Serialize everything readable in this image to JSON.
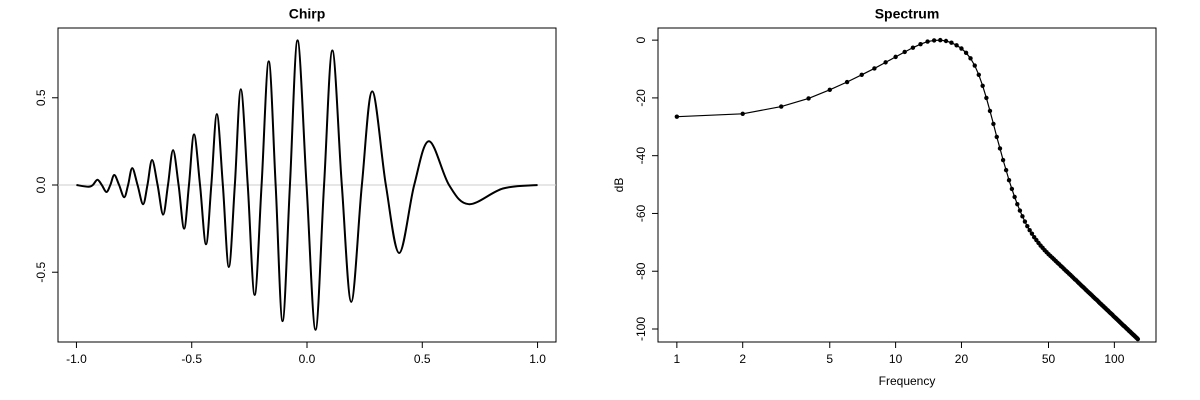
{
  "chart_data": [
    {
      "type": "line",
      "title": "Chirp",
      "color": "#000000",
      "smooth": true,
      "hline": 0,
      "hline_color": "#cccccc",
      "x": [
        -1.0,
        -0.948,
        -0.929,
        -0.909,
        -0.89,
        -0.87,
        -0.853,
        -0.836,
        -0.815,
        -0.793,
        -0.776,
        -0.758,
        -0.735,
        -0.711,
        -0.692,
        -0.672,
        -0.648,
        -0.624,
        -0.603,
        -0.581,
        -0.557,
        -0.533,
        -0.512,
        -0.49,
        -0.464,
        -0.438,
        -0.415,
        -0.391,
        -0.365,
        -0.339,
        -0.313,
        -0.287,
        -0.257,
        -0.227,
        -0.197,
        -0.166,
        -0.136,
        -0.106,
        -0.074,
        -0.041,
        -0.002,
        0.037,
        0.074,
        0.11,
        0.151,
        0.192,
        0.238,
        0.283,
        0.342,
        0.4,
        0.465,
        0.529,
        0.616,
        0.702,
        0.85,
        1.0
      ],
      "values": [
        0,
        -0.01,
        0,
        0.03,
        0,
        -0.04,
        0,
        0.057,
        0,
        -0.07,
        0,
        0.097,
        0,
        -0.11,
        0,
        0.143,
        0,
        -0.17,
        0,
        0.2,
        0,
        -0.25,
        0,
        0.29,
        0,
        -0.34,
        0,
        0.406,
        0,
        -0.47,
        0,
        0.549,
        0,
        -0.63,
        0,
        0.709,
        0,
        -0.78,
        0,
        0.829,
        0,
        -0.83,
        0,
        0.771,
        0,
        -0.67,
        0,
        0.537,
        0,
        -0.39,
        0,
        0.251,
        0,
        -0.11,
        -0.02,
        0
      ],
      "xlim": [
        -1.08,
        1.08
      ],
      "xticks": [
        {
          "value": -1,
          "label": "-1.0"
        },
        -0.5,
        {
          "value": 0,
          "label": "0.0"
        },
        0.5,
        {
          "value": 1,
          "label": "1.0"
        }
      ],
      "ylim": [
        -0.9,
        0.9
      ],
      "yticks": [
        -0.5,
        {
          "value": 0,
          "label": "0.0"
        },
        0.5
      ]
    },
    {
      "type": "line",
      "title": "Spectrum",
      "xlabel": "Frequency",
      "ylabel": "dB",
      "color": "#000000",
      "points": true,
      "xlog": true,
      "x": [
        1,
        2,
        3,
        4,
        5,
        6,
        7,
        8,
        9,
        10,
        11,
        12,
        13,
        14,
        15,
        16,
        17,
        18,
        19,
        20,
        21,
        22,
        23,
        24,
        25,
        26,
        27,
        28,
        29,
        30,
        31,
        32,
        33,
        34,
        35,
        36,
        37,
        38,
        39,
        40,
        41,
        42,
        43,
        44,
        45,
        46,
        47,
        48,
        49,
        50,
        51,
        52,
        53,
        54,
        55,
        56,
        57,
        58,
        59,
        60,
        61,
        62,
        63,
        64,
        65,
        66,
        67,
        68,
        69,
        70,
        71,
        72,
        73,
        74,
        75,
        76,
        77,
        78,
        79,
        80,
        81,
        82,
        83,
        84,
        85,
        86,
        87,
        88,
        89,
        90,
        91,
        92,
        93,
        94,
        95,
        96,
        97,
        98,
        99,
        100,
        101,
        102,
        103,
        104,
        105,
        106,
        107,
        108,
        109,
        110,
        111,
        112,
        113,
        114,
        115,
        116,
        117,
        118,
        119,
        120,
        121,
        122,
        123,
        124,
        125,
        126,
        127,
        128
      ],
      "values": [
        -26.5,
        -25.5,
        -23,
        -20.2,
        -17.2,
        -14.5,
        -12,
        -9.8,
        -7.7,
        -5.8,
        -4.1,
        -2.6,
        -1.4,
        -0.5,
        -0.1,
        0,
        -0.3,
        -0.9,
        -1.8,
        -2.9,
        -4.4,
        -6.3,
        -8.8,
        -12,
        -15.8,
        -20,
        -24.5,
        -29,
        -33.5,
        -37.5,
        -41.5,
        -45,
        -48.5,
        -51.5,
        -54.3,
        -56.8,
        -59,
        -61,
        -62.8,
        -64.4,
        -65.8,
        -67,
        -68.2,
        -69.2,
        -70.2,
        -71.1,
        -71.9,
        -72.7,
        -73.4,
        -74.1,
        -74.7,
        -75.3,
        -75.9,
        -76.5,
        -77.1,
        -77.6,
        -78.2,
        -78.7,
        -79.3,
        -79.8,
        -80.3,
        -80.8,
        -81.3,
        -81.8,
        -82.3,
        -82.8,
        -83.2,
        -83.7,
        -84.2,
        -84.6,
        -85.1,
        -85.5,
        -85.9,
        -86.4,
        -86.8,
        -87.2,
        -87.6,
        -88.0,
        -88.4,
        -88.8,
        -89.2,
        -89.6,
        -89.9,
        -90.3,
        -90.7,
        -91.1,
        -91.4,
        -91.8,
        -92.1,
        -92.5,
        -92.8,
        -93.2,
        -93.5,
        -93.8,
        -94.2,
        -94.5,
        -94.8,
        -95.1,
        -95.5,
        -95.8,
        -96.1,
        -96.4,
        -96.7,
        -97.0,
        -97.3,
        -97.6,
        -97.9,
        -98.2,
        -98.5,
        -98.8,
        -99.0,
        -99.3,
        -99.6,
        -99.9,
        -100.1,
        -100.4,
        -100.7,
        -100.9,
        -101.2,
        -101.5,
        -101.7,
        -102.0,
        -102.2,
        -102.5,
        -102.7,
        -103.0,
        -103.2,
        -103.5
      ],
      "xlim": [
        0.82,
        155
      ],
      "xticks": [
        1,
        2,
        5,
        10,
        20,
        50,
        100
      ],
      "ylim": [
        -104.5,
        4.2
      ],
      "yticks": [
        0,
        -20,
        -40,
        -60,
        -80,
        -100
      ]
    }
  ]
}
